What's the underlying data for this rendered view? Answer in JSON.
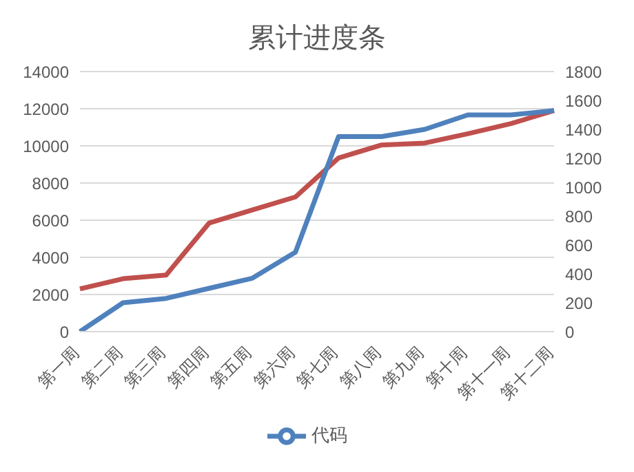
{
  "chart_data": {
    "type": "line",
    "title": "累计进度条",
    "categories": [
      "第一周",
      "第二周",
      "第三周",
      "第四周",
      "第五周",
      "第六周",
      "第七周",
      "第八周",
      "第九周",
      "第十周",
      "第十一周",
      "第十二周"
    ],
    "series": [
      {
        "color": "#c0504d",
        "values": [
          2300,
          2850,
          3050,
          5850,
          6550,
          7250,
          9350,
          10050,
          10150,
          10650,
          11200,
          11900
        ]
      },
      {
        "name": "代码",
        "color": "#4f81bd",
        "axis": "y2",
        "values": [
          0,
          200,
          230,
          300,
          370,
          550,
          1350,
          1350,
          1400,
          1500,
          1500,
          1530
        ]
      }
    ],
    "ylim": [
      0,
      14000
    ],
    "yticks": [
      0,
      2000,
      4000,
      6000,
      8000,
      10000,
      12000,
      14000
    ],
    "y2lim": [
      0,
      1800
    ],
    "y2ticks": [
      0,
      200,
      400,
      600,
      800,
      1000,
      1200,
      1400,
      1600,
      1800
    ],
    "grid": "y",
    "legend": "bottom",
    "marker": "none",
    "line_style": "solid"
  }
}
